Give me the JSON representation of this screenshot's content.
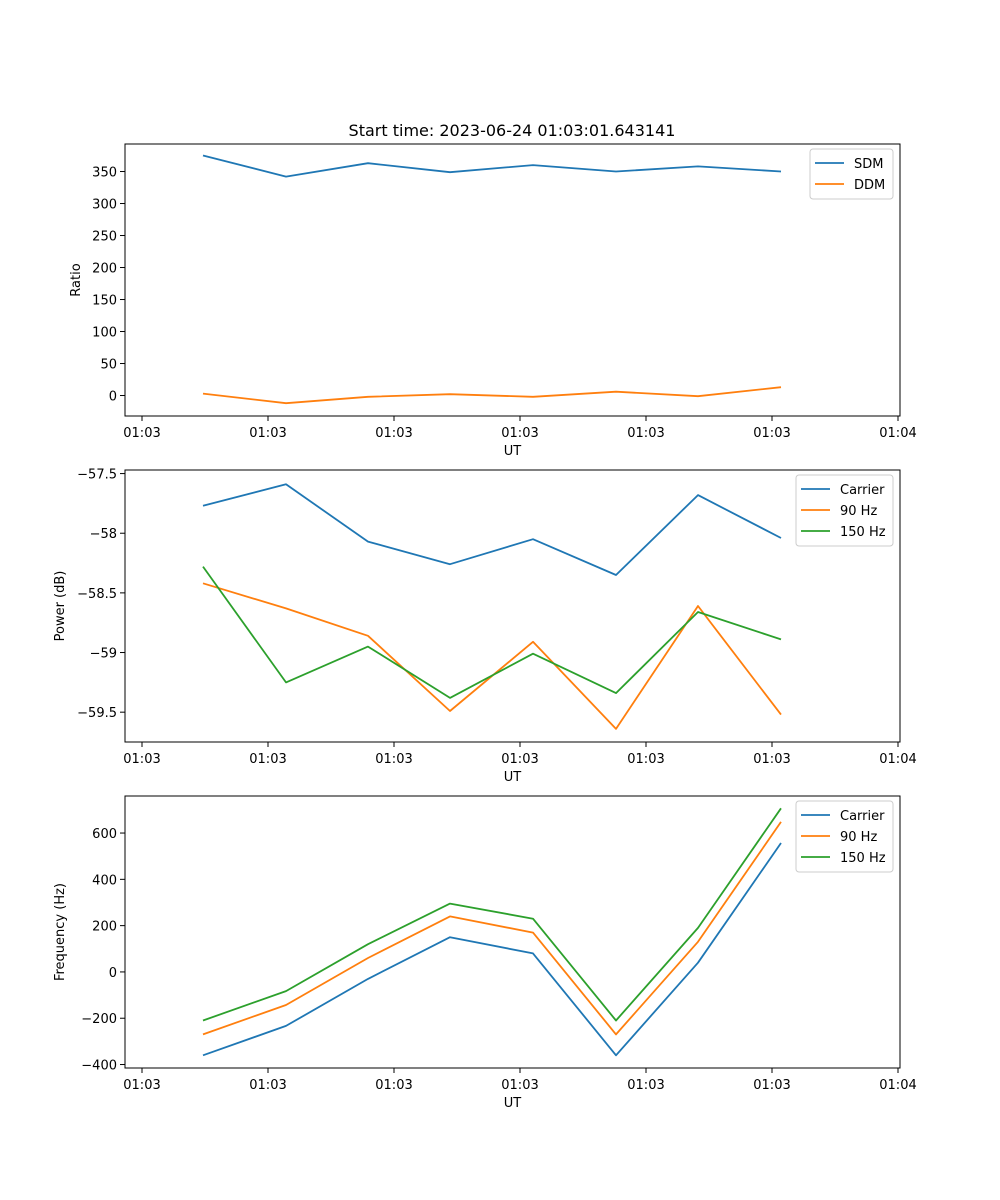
{
  "figure": {
    "title": "Start time: 2023-06-24 01:03:01.643141"
  },
  "colors": {
    "blue": "#1f77b4",
    "orange": "#ff7f0e",
    "green": "#2ca02c"
  },
  "chart_data": [
    {
      "type": "line",
      "title": "Start time: 2023-06-24 01:03:01.643141",
      "xlabel": "UT",
      "ylabel": "Ratio",
      "x_tick_labels": [
        "01:03",
        "01:03",
        "01:03",
        "01:03",
        "01:03",
        "01:03",
        "01:04"
      ],
      "y_ticks": [
        0,
        50,
        100,
        150,
        200,
        250,
        300,
        350
      ],
      "ylim": [
        -32,
        393
      ],
      "legend_position": "top-right",
      "grid": false,
      "series": [
        {
          "name": "SDM",
          "color": "#1f77b4",
          "values": [
            375,
            342,
            363,
            349,
            360,
            350,
            358,
            350
          ]
        },
        {
          "name": "DDM",
          "color": "#ff7f0e",
          "values": [
            3,
            -12,
            -2,
            2,
            -2,
            6,
            -1,
            13
          ]
        }
      ]
    },
    {
      "type": "line",
      "title": "",
      "xlabel": "UT",
      "ylabel": "Power (dB)",
      "x_tick_labels": [
        "01:03",
        "01:03",
        "01:03",
        "01:03",
        "01:03",
        "01:03",
        "01:04"
      ],
      "y_ticks": [
        -57.5,
        -58.0,
        -58.5,
        -59.0,
        -59.5
      ],
      "ylim": [
        -59.75,
        -57.47
      ],
      "legend_position": "top-right",
      "grid": false,
      "series": [
        {
          "name": "Carrier",
          "color": "#1f77b4",
          "values": [
            -57.77,
            -57.59,
            -58.07,
            -58.26,
            -58.05,
            -58.35,
            -57.68,
            -58.04
          ]
        },
        {
          "name": "90 Hz",
          "color": "#ff7f0e",
          "values": [
            -58.42,
            -58.63,
            -58.86,
            -59.49,
            -58.91,
            -59.64,
            -58.61,
            -59.52
          ]
        },
        {
          "name": "150 Hz",
          "color": "#2ca02c",
          "values": [
            -58.28,
            -59.25,
            -58.95,
            -59.38,
            -59.01,
            -59.34,
            -58.66,
            -58.89
          ]
        }
      ]
    },
    {
      "type": "line",
      "title": "",
      "xlabel": "UT",
      "ylabel": "Frequency (Hz)",
      "x_tick_labels": [
        "01:03",
        "01:03",
        "01:03",
        "01:03",
        "01:03",
        "01:03",
        "01:04"
      ],
      "y_ticks": [
        -400,
        -200,
        0,
        200,
        400,
        600
      ],
      "ylim": [
        -415,
        760
      ],
      "legend_position": "top-right",
      "grid": false,
      "series": [
        {
          "name": "Carrier",
          "color": "#1f77b4",
          "values": [
            -360,
            -233,
            -30,
            150,
            80,
            -360,
            40,
            557
          ]
        },
        {
          "name": "90 Hz",
          "color": "#ff7f0e",
          "values": [
            -270,
            -143,
            60,
            240,
            170,
            -270,
            130,
            648
          ]
        },
        {
          "name": "150 Hz",
          "color": "#2ca02c",
          "values": [
            -210,
            -83,
            120,
            295,
            230,
            -210,
            190,
            707
          ]
        }
      ]
    }
  ]
}
